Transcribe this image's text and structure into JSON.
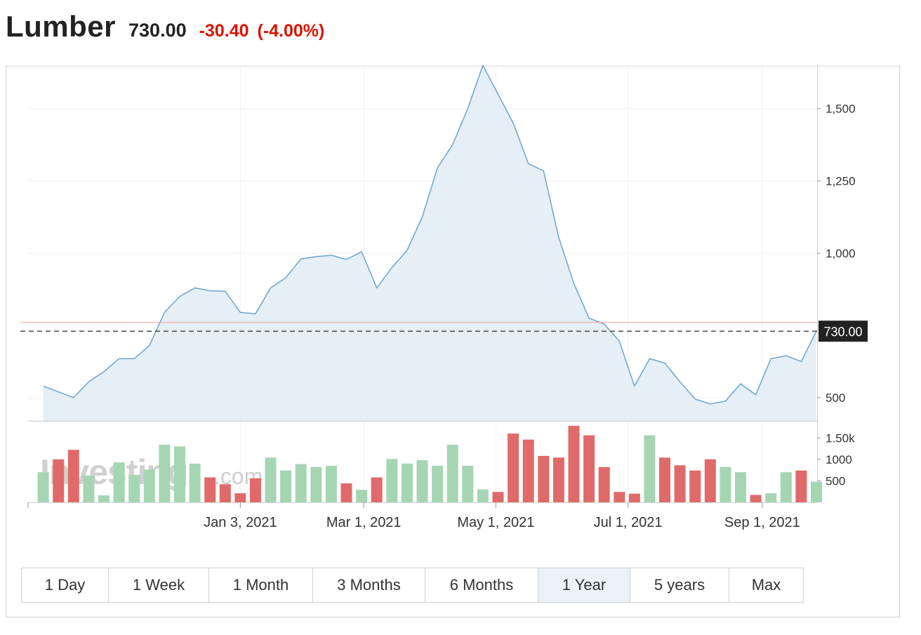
{
  "header": {
    "title": "Lumber",
    "last": "730.00",
    "change": "-30.40",
    "change_pct": "(-4.00%)"
  },
  "colors": {
    "line": "#74a9cf",
    "area": "#e6eef6",
    "up_volume": "#a6d5b4",
    "down_volume": "#e06a6a",
    "change_negative": "#d91400",
    "price_label_bg": "#222222",
    "prev_close_line": "#f29c9c"
  },
  "ranges": [
    {
      "label": "1 Day",
      "active": false
    },
    {
      "label": "1 Week",
      "active": false
    },
    {
      "label": "1 Month",
      "active": false
    },
    {
      "label": "3 Months",
      "active": false
    },
    {
      "label": "6 Months",
      "active": false
    },
    {
      "label": "1 Year",
      "active": true
    },
    {
      "label": "5 years",
      "active": false
    },
    {
      "label": "Max",
      "active": false
    }
  ],
  "watermark": "Investing.com",
  "chart_data": {
    "type": "area",
    "title": "",
    "xlabel": "",
    "ylabel": "",
    "ylim": [
      420,
      1650
    ],
    "y_ticks": [
      "1,500",
      "1,250",
      "1,000",
      "500"
    ],
    "y_tick_values": [
      1500,
      1250,
      1000,
      500
    ],
    "x_tick_labels": [
      "Jan 3, 2021",
      "Mar 1, 2021",
      "May 1, 2021",
      "Jul 1, 2021",
      "Sep 1, 2021"
    ],
    "x_tick_dates": [
      "2021-01-03",
      "2021-03-01",
      "2021-05-01",
      "2021-07-01",
      "2021-09-01"
    ],
    "x_range": [
      "2020-09-27",
      "2021-09-26"
    ],
    "last_price": 730,
    "last_price_label": "730.00",
    "previous_close": 760.4,
    "series": [
      {
        "x": [
          "2020-10-04",
          "2020-10-11",
          "2020-10-18",
          "2020-10-25",
          "2020-11-01",
          "2020-11-08",
          "2020-11-15",
          "2020-11-22",
          "2020-11-29",
          "2020-12-06",
          "2020-12-13",
          "2020-12-20",
          "2020-12-27",
          "2021-01-03",
          "2021-01-10",
          "2021-01-17",
          "2021-01-24",
          "2021-01-31",
          "2021-02-07",
          "2021-02-14",
          "2021-02-21",
          "2021-02-28",
          "2021-03-07",
          "2021-03-14",
          "2021-03-21",
          "2021-03-28",
          "2021-04-04",
          "2021-04-11",
          "2021-04-18",
          "2021-04-25",
          "2021-05-02",
          "2021-05-09",
          "2021-05-16",
          "2021-05-23",
          "2021-05-30",
          "2021-06-06",
          "2021-06-13",
          "2021-06-20",
          "2021-06-27",
          "2021-07-04",
          "2021-07-11",
          "2021-07-18",
          "2021-07-25",
          "2021-08-01",
          "2021-08-08",
          "2021-08-15",
          "2021-08-22",
          "2021-08-29",
          "2021-09-05",
          "2021-09-12",
          "2021-09-19",
          "2021-09-26"
        ],
        "values": [
          540,
          520,
          500,
          555,
          590,
          635,
          635,
          680,
          795,
          850,
          880,
          870,
          868,
          795,
          790,
          880,
          915,
          980,
          988,
          993,
          978,
          1005,
          880,
          950,
          1010,
          1125,
          1295,
          1375,
          1500,
          1650,
          1550,
          1450,
          1310,
          1285,
          1055,
          895,
          775,
          755,
          695,
          540,
          635,
          620,
          555,
          495,
          478,
          488,
          548,
          510,
          635,
          645,
          625,
          730
        ]
      }
    ],
    "volume": {
      "y_ticks": [
        "1.50k",
        "1000",
        "500"
      ],
      "y_tick_values": [
        1500,
        1000,
        500
      ],
      "values": [
        700,
        1000,
        1220,
        620,
        160,
        930,
        640,
        760,
        1340,
        1300,
        900,
        580,
        420,
        210,
        560,
        1040,
        740,
        890,
        820,
        850,
        440,
        290,
        580,
        1010,
        900,
        980,
        850,
        1340,
        850,
        300,
        240,
        1600,
        1460,
        1080,
        1040,
        1780,
        1560,
        820,
        240,
        200,
        1560,
        1040,
        860,
        740,
        1000,
        820,
        700,
        170,
        210,
        700,
        740,
        480
      ],
      "direction": [
        "up",
        "down",
        "down",
        "up",
        "up",
        "up",
        "up",
        "up",
        "up",
        "up",
        "up",
        "down",
        "down",
        "down",
        "down",
        "up",
        "up",
        "up",
        "up",
        "up",
        "down",
        "up",
        "down",
        "up",
        "up",
        "up",
        "up",
        "up",
        "up",
        "up",
        "down",
        "down",
        "down",
        "down",
        "down",
        "down",
        "down",
        "down",
        "down",
        "down",
        "up",
        "down",
        "down",
        "down",
        "down",
        "up",
        "up",
        "down",
        "up",
        "up",
        "down",
        "up"
      ]
    }
  }
}
